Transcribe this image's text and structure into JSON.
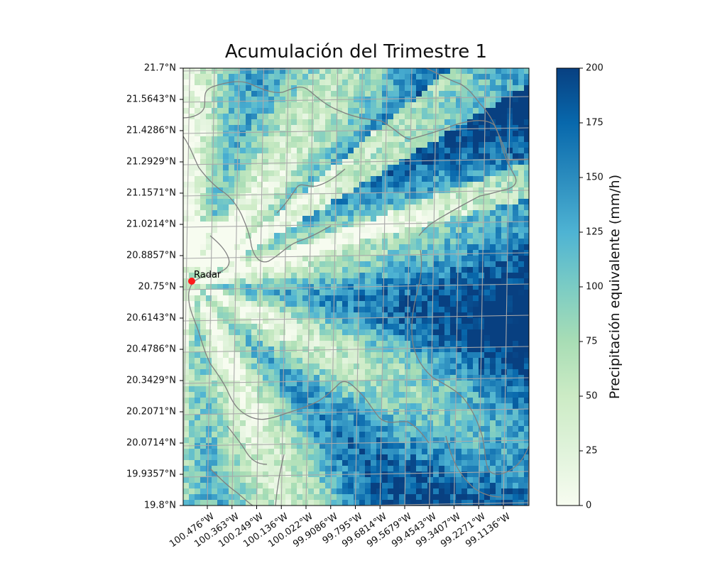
{
  "map": {
    "title": "Acumulación del  Trimestre 1",
    "marker_label": "Radar",
    "marker_color": "#ff1a1a",
    "lat_ticks": [
      "21.7°N",
      "21.5643°N",
      "21.4286°N",
      "21.2929°N",
      "21.1571°N",
      "21.0214°N",
      "20.8857°N",
      "20.75°N",
      "20.6143°N",
      "20.4786°N",
      "20.3429°N",
      "20.2071°N",
      "20.0714°N",
      "19.9357°N",
      "19.8°N"
    ],
    "lon_ticks": [
      "100.476°W",
      "100.363°W",
      "100.249°W",
      "100.136°W",
      "100.022°W",
      "99.9086°W",
      "99.795°W",
      "99.6814°W",
      "99.5679°W",
      "99.4543°W",
      "99.3407°W",
      "99.2271°W",
      "99.1136°W"
    ],
    "colorbar": {
      "label": "Precipitación equivalente (mm/h)",
      "ticks": [
        "0",
        "25",
        "50",
        "75",
        "100",
        "125",
        "150",
        "175",
        "200"
      ],
      "range": [
        0,
        200
      ],
      "colormap": "GnBu",
      "colors": [
        "#f7fcf0",
        "#e0f3db",
        "#ccebc5",
        "#a8ddb5",
        "#7bccc4",
        "#4eb3d3",
        "#2b8cbe",
        "#0868ac",
        "#084081"
      ]
    },
    "grid": true,
    "boundary_color": "#808080"
  }
}
